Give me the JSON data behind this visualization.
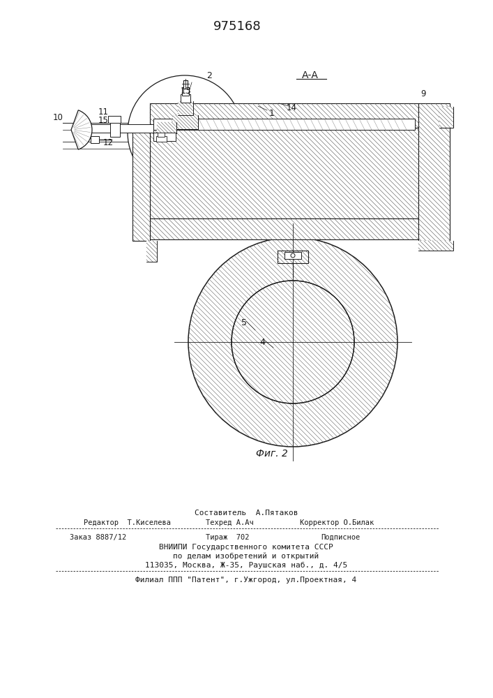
{
  "title": "975168",
  "fig_label": "Фиг. 2",
  "section_label": "А-А",
  "bg_color": "#ffffff",
  "line_color": "#1a1a1a",
  "footer": {
    "line1": "Составитель  А.Пятаков",
    "line2_left": "Редактор  Т.Киселева",
    "line2_mid": "Техред А.Ач",
    "line2_right": "Корректор О.Билак",
    "line3_left": "Заказ 8887/12",
    "line3_mid": "Тираж  702",
    "line3_right": "Подписное",
    "line4": "ВНИИПИ Государственного комитета СССР",
    "line5": "по делам изобретений и открытий",
    "line6": "113035, Москва, Ж-35, Раушская наб., д. 4/5",
    "line7": "Филиал ППП \"Патент\", г.Ужгород, ул.Проектная, 4"
  }
}
